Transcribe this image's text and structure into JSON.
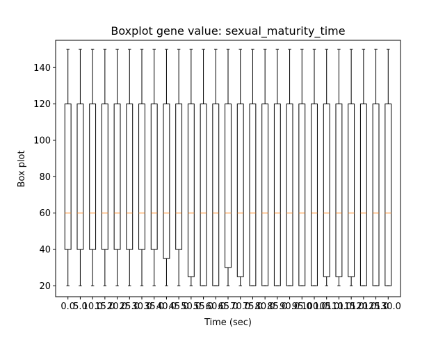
{
  "chart_data": {
    "type": "boxplot",
    "title": "Boxplot gene value: sexual_maturity_time",
    "xlabel": "Time (sec)",
    "ylabel": "Box plot",
    "ylim": [
      14,
      155
    ],
    "y_ticks": [
      20,
      40,
      60,
      80,
      100,
      120,
      140
    ],
    "grid": false,
    "colors": {
      "box": "#000000",
      "median": "#ff7f0e",
      "background": "#ffffff"
    },
    "categories": [
      "0.0",
      "5.0",
      "10.0",
      "15.0",
      "20.0",
      "25.0",
      "30.0",
      "35.0",
      "40.0",
      "45.0",
      "50.0",
      "55.0",
      "60.0",
      "65.0",
      "70.0",
      "75.0",
      "80.0",
      "85.0",
      "90.0",
      "95.0",
      "100.0",
      "105.0",
      "110.0",
      "115.0",
      "120.0",
      "125.0",
      "130.0"
    ],
    "boxes": [
      {
        "whislo": 20,
        "q1": 40,
        "med": 60,
        "q3": 120,
        "whishi": 150
      },
      {
        "whislo": 20,
        "q1": 40,
        "med": 60,
        "q3": 120,
        "whishi": 150
      },
      {
        "whislo": 20,
        "q1": 40,
        "med": 60,
        "q3": 120,
        "whishi": 150
      },
      {
        "whislo": 20,
        "q1": 40,
        "med": 60,
        "q3": 120,
        "whishi": 150
      },
      {
        "whislo": 20,
        "q1": 40,
        "med": 60,
        "q3": 120,
        "whishi": 150
      },
      {
        "whislo": 20,
        "q1": 40,
        "med": 60,
        "q3": 120,
        "whishi": 150
      },
      {
        "whislo": 20,
        "q1": 40,
        "med": 60,
        "q3": 120,
        "whishi": 150
      },
      {
        "whislo": 20,
        "q1": 40,
        "med": 60,
        "q3": 120,
        "whishi": 150
      },
      {
        "whislo": 20,
        "q1": 35,
        "med": 60,
        "q3": 120,
        "whishi": 150
      },
      {
        "whislo": 20,
        "q1": 40,
        "med": 60,
        "q3": 120,
        "whishi": 150
      },
      {
        "whislo": 20,
        "q1": 25,
        "med": 60,
        "q3": 120,
        "whishi": 150
      },
      {
        "whislo": 20,
        "q1": 20,
        "med": 60,
        "q3": 120,
        "whishi": 150
      },
      {
        "whislo": 20,
        "q1": 20,
        "med": 60,
        "q3": 120,
        "whishi": 150
      },
      {
        "whislo": 20,
        "q1": 30,
        "med": 60,
        "q3": 120,
        "whishi": 150
      },
      {
        "whislo": 20,
        "q1": 25,
        "med": 60,
        "q3": 120,
        "whishi": 150
      },
      {
        "whislo": 20,
        "q1": 20,
        "med": 60,
        "q3": 120,
        "whishi": 150
      },
      {
        "whislo": 20,
        "q1": 20,
        "med": 60,
        "q3": 120,
        "whishi": 150
      },
      {
        "whislo": 20,
        "q1": 20,
        "med": 60,
        "q3": 120,
        "whishi": 150
      },
      {
        "whislo": 20,
        "q1": 20,
        "med": 60,
        "q3": 120,
        "whishi": 150
      },
      {
        "whislo": 20,
        "q1": 20,
        "med": 60,
        "q3": 120,
        "whishi": 150
      },
      {
        "whislo": 20,
        "q1": 20,
        "med": 60,
        "q3": 120,
        "whishi": 150
      },
      {
        "whislo": 20,
        "q1": 25,
        "med": 60,
        "q3": 120,
        "whishi": 150
      },
      {
        "whislo": 20,
        "q1": 25,
        "med": 60,
        "q3": 120,
        "whishi": 150
      },
      {
        "whislo": 20,
        "q1": 25,
        "med": 60,
        "q3": 120,
        "whishi": 150
      },
      {
        "whislo": 20,
        "q1": 20,
        "med": 60,
        "q3": 120,
        "whishi": 150
      },
      {
        "whislo": 20,
        "q1": 20,
        "med": 60,
        "q3": 120,
        "whishi": 150
      },
      {
        "whislo": 20,
        "q1": 20,
        "med": 60,
        "q3": 120,
        "whishi": 150
      }
    ]
  }
}
